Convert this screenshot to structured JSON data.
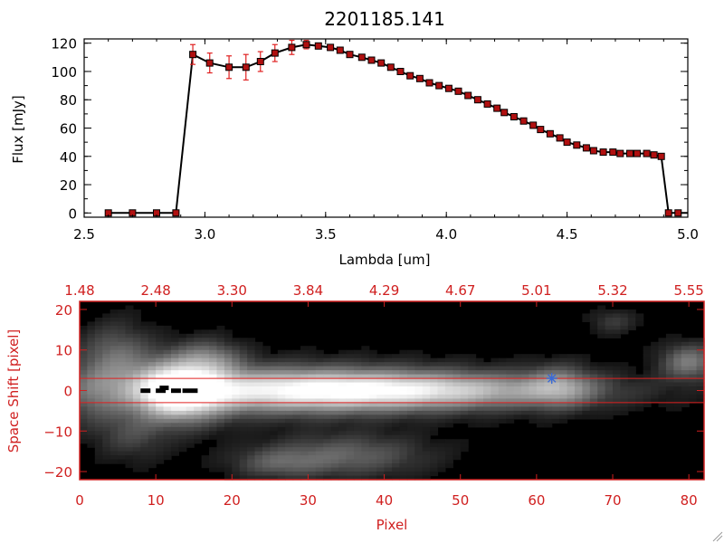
{
  "title": "2201185.141",
  "colors": {
    "background": "#ffffff",
    "axes": "#000000",
    "line": "#000000",
    "marker": "#b01010",
    "errorbar": "#e02020",
    "image_frame": "#d02020",
    "image_axis_text": "#d02020",
    "aperture_line": "#e02020",
    "star_marker": "#3a6ad6"
  },
  "chart_data": [
    {
      "type": "line",
      "xlabel": "Lambda [um]",
      "ylabel": "Flux [mJy]",
      "xlim": [
        2.5,
        5.0
      ],
      "ylim": [
        -3,
        123
      ],
      "xticks": [
        "2.5",
        "3.0",
        "3.5",
        "4.0",
        "4.5",
        "5.0"
      ],
      "xtick_values": [
        2.5,
        3.0,
        3.5,
        4.0,
        4.5,
        5.0
      ],
      "yticks": [
        "0",
        "20",
        "40",
        "60",
        "80",
        "100",
        "120"
      ],
      "ytick_values": [
        0,
        20,
        40,
        60,
        80,
        100,
        120
      ],
      "series": [
        {
          "x": [
            2.6,
            2.7,
            2.8,
            2.88,
            2.95,
            3.02,
            3.1,
            3.17,
            3.23,
            3.29,
            3.36,
            3.42,
            3.47,
            3.52,
            3.56,
            3.6,
            3.65,
            3.69,
            3.73,
            3.77,
            3.81,
            3.85,
            3.89,
            3.93,
            3.97,
            4.01,
            4.05,
            4.09,
            4.13,
            4.17,
            4.21,
            4.24,
            4.28,
            4.32,
            4.36,
            4.39,
            4.43,
            4.47,
            4.5,
            4.54,
            4.58,
            4.61,
            4.65,
            4.69,
            4.72,
            4.76,
            4.79,
            4.83,
            4.86,
            4.89,
            4.92,
            4.96,
            5.0
          ],
          "y": [
            0,
            0,
            0,
            0,
            112,
            106,
            103,
            103,
            107,
            113,
            117,
            119,
            118,
            117,
            115,
            112,
            110,
            108,
            106,
            103,
            100,
            97,
            95,
            92,
            90,
            88,
            86,
            83,
            80,
            77,
            74,
            71,
            68,
            65,
            62,
            59,
            56,
            53,
            50,
            48,
            46,
            44,
            43,
            43,
            42,
            42,
            42,
            42,
            41,
            40,
            0,
            0,
            0
          ],
          "yerr": [
            0,
            0,
            0,
            0,
            7,
            7,
            8,
            9,
            7,
            6,
            5,
            3,
            2,
            2,
            2,
            2,
            2,
            2,
            2,
            2,
            2,
            2,
            2,
            2,
            2,
            2,
            2,
            2,
            2,
            2,
            2,
            2,
            2,
            2,
            2,
            2,
            2,
            2,
            2,
            2,
            2,
            2,
            2,
            2,
            2,
            2,
            2,
            2,
            2,
            2,
            0,
            0,
            0
          ]
        }
      ]
    },
    {
      "type": "heatmap",
      "xlabel": "Pixel",
      "ylabel": "Space Shift [pixel]",
      "xlim": [
        0,
        82
      ],
      "ylim": [
        -22,
        22
      ],
      "xticks": [
        "0",
        "10",
        "20",
        "30",
        "40",
        "50",
        "60",
        "70",
        "80"
      ],
      "xtick_values": [
        0,
        10,
        20,
        30,
        40,
        50,
        60,
        70,
        80
      ],
      "yticks": [
        "−20",
        "−10",
        "0",
        "10",
        "20"
      ],
      "ytick_values": [
        -20,
        -10,
        0,
        10,
        20
      ],
      "top_axis_ticks": [
        "1.48",
        "2.48",
        "3.30",
        "3.84",
        "4.29",
        "4.67",
        "5.01",
        "5.32",
        "5.55"
      ],
      "top_axis_values": [
        0,
        10,
        20,
        30,
        40,
        50,
        60,
        70,
        80
      ],
      "aperture_lines": [
        3,
        -3
      ],
      "star_marker": {
        "x": 62,
        "y": 3
      },
      "colormap": "grayscale"
    }
  ]
}
